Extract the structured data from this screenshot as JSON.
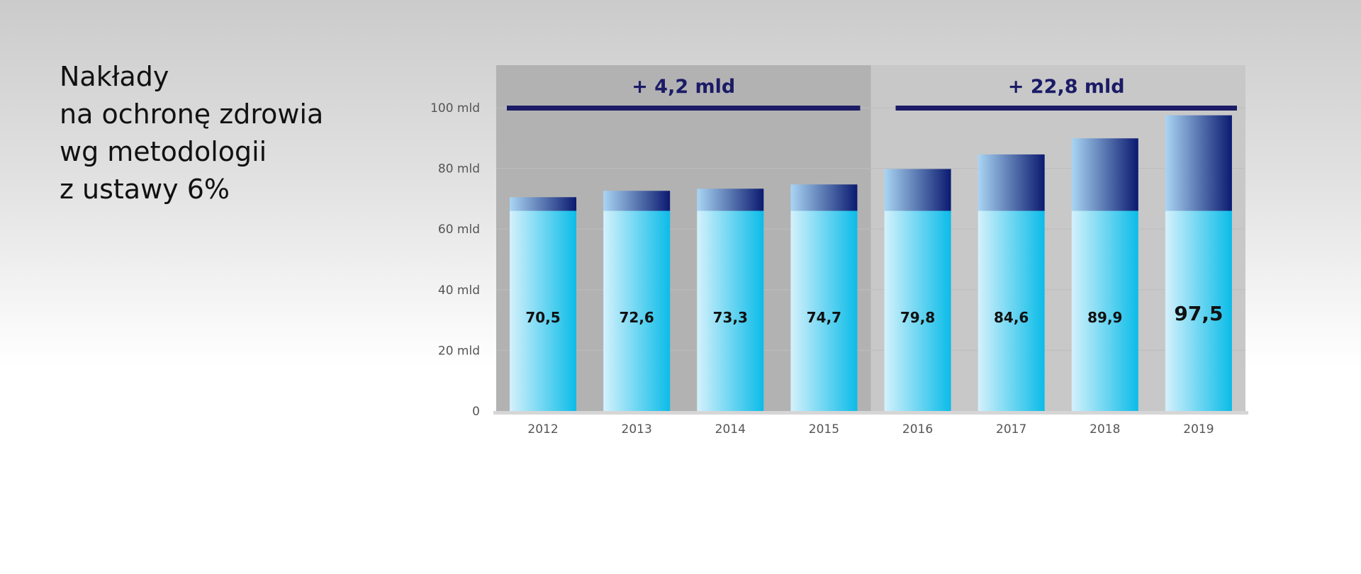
{
  "title_lines": [
    "Nakłady",
    "na ochronę zdrowia",
    "wg metodologii",
    "z ustawy 6%"
  ],
  "chart_data": {
    "type": "bar",
    "categories": [
      "2012",
      "2013",
      "2014",
      "2015",
      "2016",
      "2017",
      "2018",
      "2019"
    ],
    "values": [
      70.5,
      72.6,
      73.3,
      74.7,
      79.8,
      84.6,
      89.9,
      97.5
    ],
    "value_labels": [
      "70,5",
      "72,6",
      "73,3",
      "74,7",
      "79,8",
      "84,6",
      "89,9",
      "97,5"
    ],
    "base_level": 66,
    "ylim": [
      0,
      110
    ],
    "y_ticks": [
      {
        "value": 0,
        "label": "0"
      },
      {
        "value": 20,
        "label": "20 mld"
      },
      {
        "value": 40,
        "label": "40 mld"
      },
      {
        "value": 60,
        "label": "60 mld"
      },
      {
        "value": 80,
        "label": "80 mld"
      },
      {
        "value": 100,
        "label": "100 mld"
      }
    ],
    "grid": true,
    "periods": [
      {
        "from": "2012",
        "to": "2015",
        "label": "+ 4,2 mld",
        "shade": "#b2b2b2"
      },
      {
        "from": "2016",
        "to": "2019",
        "label": "+ 22,8 mld",
        "shade": "#c8c8c8"
      }
    ],
    "highlight_category": "2019",
    "colors": {
      "base_light": "#d4f1fc",
      "base_dark": "#0bbce8",
      "top_light": "#a9d5f3",
      "top_dark": "#0b1a70",
      "bracket": "#1b1b66",
      "axis": "#d6d6d6",
      "tick_text": "#555555",
      "label_text": "#111111"
    }
  }
}
